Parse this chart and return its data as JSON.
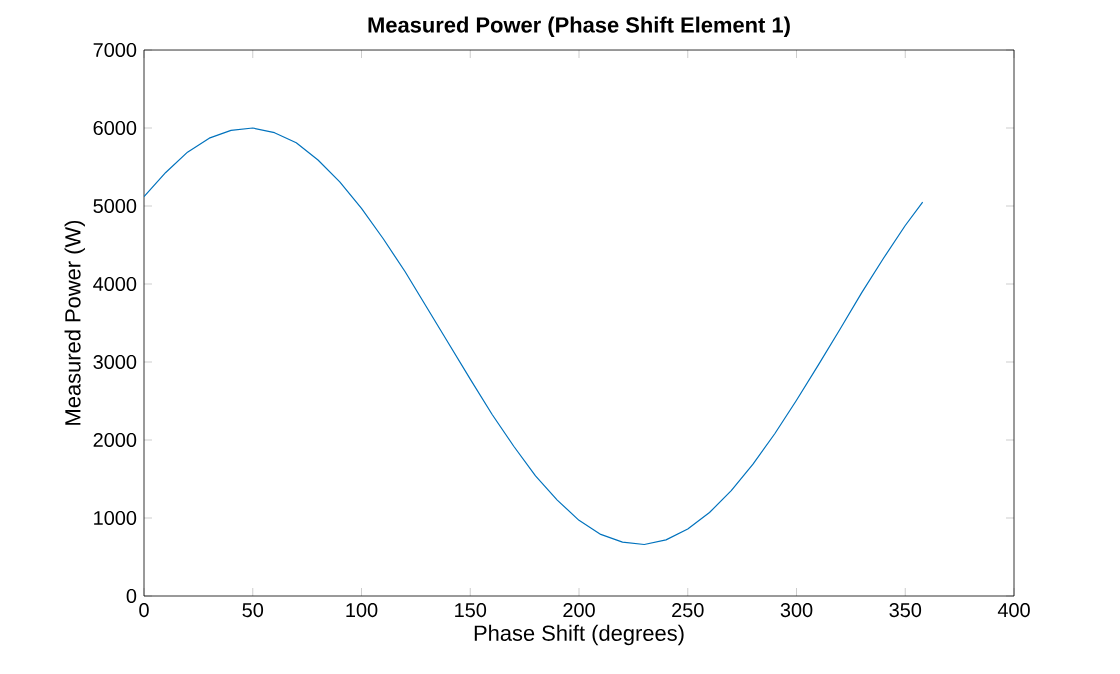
{
  "chart_data": {
    "type": "line",
    "title": "Measured Power (Phase Shift Element 1)",
    "xlabel": "Phase Shift (degrees)",
    "ylabel": "Measured Power (W)",
    "x": [
      0,
      10,
      20,
      30,
      40,
      50,
      60,
      70,
      80,
      90,
      100,
      110,
      120,
      130,
      140,
      150,
      160,
      170,
      180,
      190,
      200,
      210,
      220,
      230,
      240,
      250,
      260,
      270,
      280,
      290,
      300,
      310,
      320,
      330,
      340,
      350,
      358
    ],
    "series": [
      {
        "color": "#0072bd",
        "values": [
          5120,
          5430,
          5690,
          5870,
          5970,
          6000,
          5940,
          5810,
          5590,
          5310,
          4970,
          4580,
          4160,
          3700,
          3240,
          2780,
          2330,
          1920,
          1540,
          1230,
          970,
          790,
          690,
          660,
          720,
          860,
          1070,
          1350,
          1690,
          2080,
          2510,
          2960,
          3420,
          3890,
          4330,
          4750,
          5050
        ]
      }
    ],
    "xlim": [
      0,
      400
    ],
    "ylim": [
      0,
      7000
    ],
    "xticks": [
      0,
      50,
      100,
      150,
      200,
      250,
      300,
      350,
      400
    ],
    "yticks": [
      0,
      1000,
      2000,
      3000,
      4000,
      5000,
      6000,
      7000
    ],
    "marker": "none",
    "line_style": "solid"
  }
}
